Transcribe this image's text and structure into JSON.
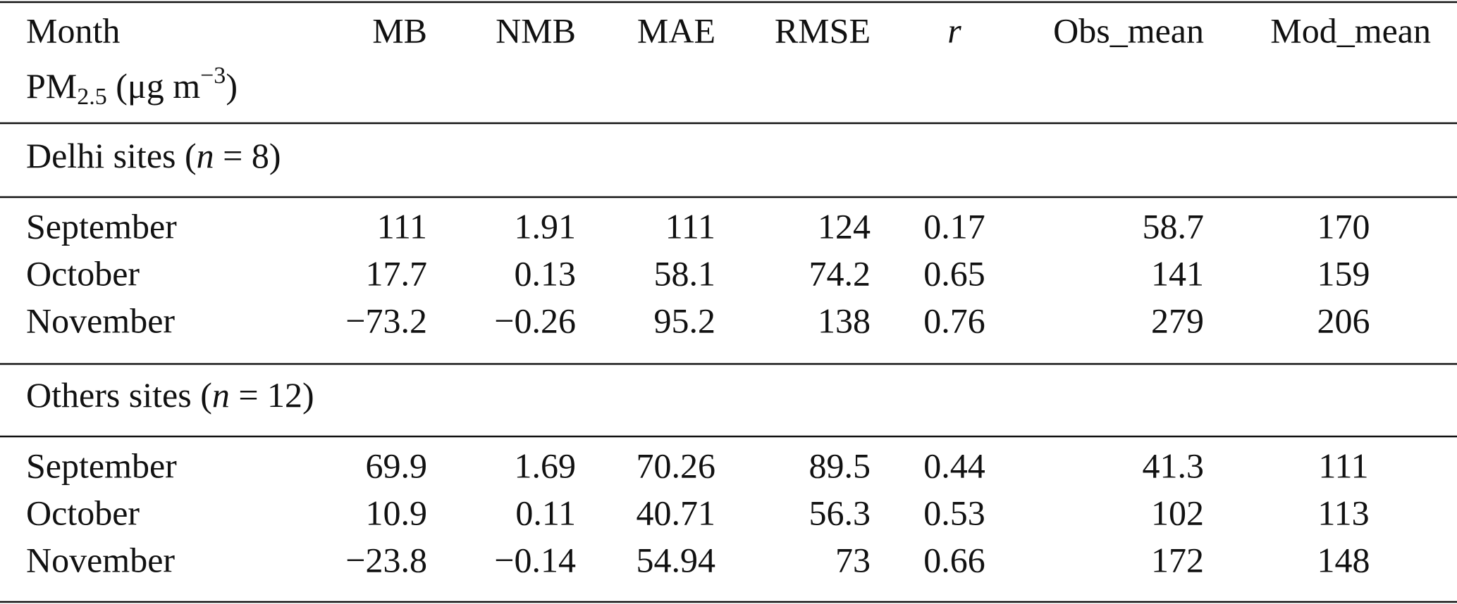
{
  "header": {
    "columns": [
      "Month",
      "MB",
      "NMB",
      "MAE",
      "RMSE",
      "r",
      "Obs_mean",
      "Mod_mean"
    ],
    "unit": {
      "main": "PM",
      "sub": "2.5",
      "mid": " (μg m",
      "sup": "−3",
      "end": ")"
    }
  },
  "sections": [
    {
      "label": {
        "text": "Delhi sites (",
        "var": "n",
        "rest": " = 8)"
      },
      "rows": [
        [
          "September",
          "111",
          "1.91",
          "111",
          "124",
          "0.17",
          "58.7",
          "170"
        ],
        [
          "October",
          "17.7",
          "0.13",
          "58.1",
          "74.2",
          "0.65",
          "141",
          "159"
        ],
        [
          "November",
          "−73.2",
          "−0.26",
          "95.2",
          "138",
          "0.76",
          "279",
          "206"
        ]
      ]
    },
    {
      "label": {
        "text": "Others sites (",
        "var": "n",
        "rest": " = 12)"
      },
      "rows": [
        [
          "September",
          "69.9",
          "1.69",
          "70.26",
          "89.5",
          "0.44",
          "41.3",
          "111"
        ],
        [
          "October",
          "10.9",
          "0.11",
          "40.71",
          "56.3",
          "0.53",
          "102",
          "113"
        ],
        [
          "November",
          "−23.8",
          "−0.14",
          "54.94",
          "73",
          "0.66",
          "172",
          "148"
        ]
      ]
    }
  ]
}
